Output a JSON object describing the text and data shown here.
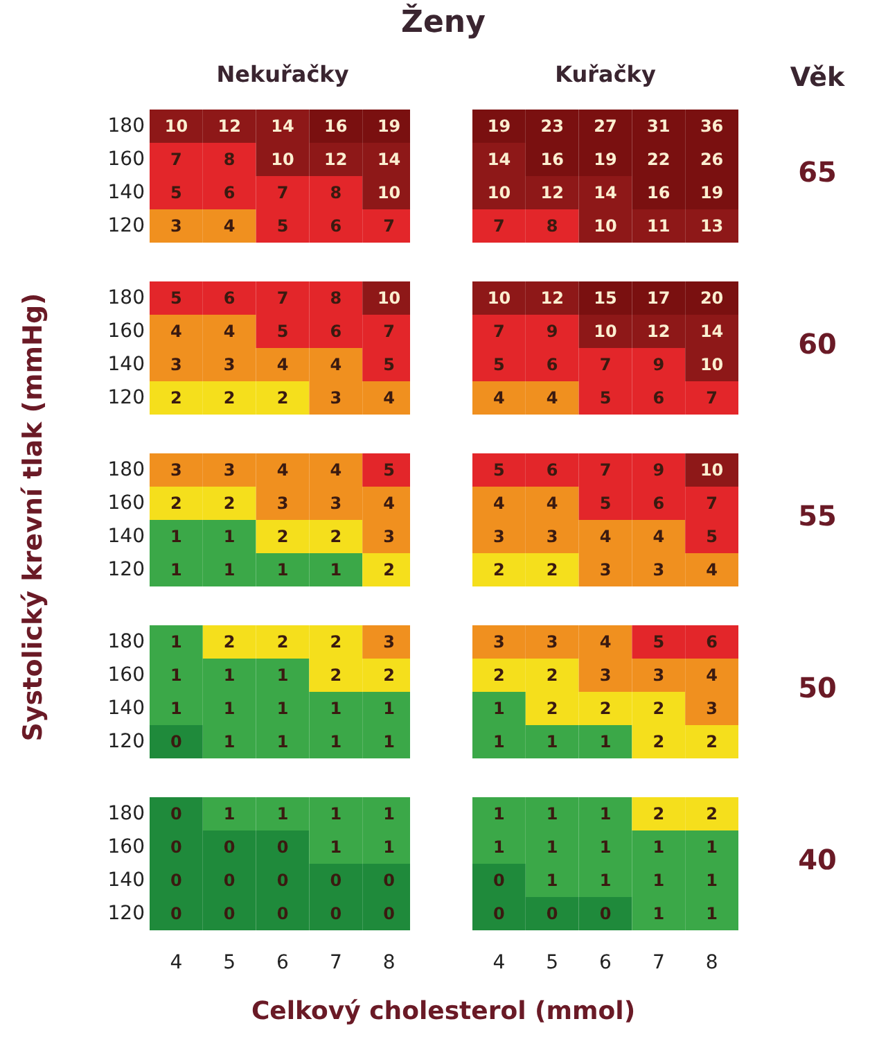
{
  "chart_data": [
    {
      "type": "heatmap",
      "data_labels": true,
      "title": "Ženy",
      "subtitle": "Nekuřačky",
      "categories": [
        "4",
        "5",
        "6",
        "7",
        "8"
      ],
      "y_categories": [
        "180",
        "160",
        "140",
        "120"
      ],
      "tick_labels": "y",
      "cells": [
        [
          10,
          12,
          14,
          16,
          19
        ],
        [
          7,
          8,
          10,
          12,
          14
        ],
        [
          5,
          6,
          7,
          8,
          10
        ],
        [
          3,
          4,
          5,
          6,
          7
        ]
      ]
    },
    {
      "type": "heatmap",
      "data_labels": true,
      "subtitle": "Kuřačky",
      "annotations": [
        "Věk"
      ],
      "y2label": "65",
      "categories": [
        "4",
        "5",
        "6",
        "7",
        "8"
      ],
      "y_categories": [
        "180",
        "160",
        "140",
        "120"
      ],
      "tick_labels": false,
      "cells": [
        [
          19,
          23,
          27,
          31,
          36
        ],
        [
          14,
          16,
          19,
          22,
          26
        ],
        [
          10,
          12,
          14,
          16,
          19
        ],
        [
          7,
          8,
          10,
          11,
          13
        ]
      ]
    },
    {
      "type": "heatmap",
      "data_labels": true,
      "categories": [
        "4",
        "5",
        "6",
        "7",
        "8"
      ],
      "y_categories": [
        "180",
        "160",
        "140",
        "120"
      ],
      "tick_labels": "y",
      "cells": [
        [
          5,
          6,
          7,
          8,
          10
        ],
        [
          4,
          4,
          5,
          6,
          7
        ],
        [
          3,
          3,
          4,
          4,
          5
        ],
        [
          2,
          2,
          2,
          3,
          4
        ]
      ]
    },
    {
      "type": "heatmap",
      "data_labels": true,
      "y2label": "60",
      "categories": [
        "4",
        "5",
        "6",
        "7",
        "8"
      ],
      "y_categories": [
        "180",
        "160",
        "140",
        "120"
      ],
      "tick_labels": false,
      "cells": [
        [
          10,
          12,
          15,
          17,
          20
        ],
        [
          7,
          9,
          10,
          12,
          14
        ],
        [
          5,
          6,
          7,
          9,
          10
        ],
        [
          4,
          4,
          5,
          6,
          7
        ]
      ]
    },
    {
      "type": "heatmap",
      "data_labels": true,
      "ylabel": "Systolický krevní tlak (mmHg)",
      "categories": [
        "4",
        "5",
        "6",
        "7",
        "8"
      ],
      "y_categories": [
        "180",
        "160",
        "140",
        "120"
      ],
      "tick_labels": "y",
      "cells": [
        [
          3,
          3,
          4,
          4,
          5
        ],
        [
          2,
          2,
          3,
          3,
          4
        ],
        [
          1,
          1,
          2,
          2,
          3
        ],
        [
          1,
          1,
          1,
          1,
          2
        ]
      ]
    },
    {
      "type": "heatmap",
      "data_labels": true,
      "y2label": "55",
      "categories": [
        "4",
        "5",
        "6",
        "7",
        "8"
      ],
      "y_categories": [
        "180",
        "160",
        "140",
        "120"
      ],
      "tick_labels": false,
      "cells": [
        [
          5,
          6,
          7,
          9,
          10
        ],
        [
          4,
          4,
          5,
          6,
          7
        ],
        [
          3,
          3,
          4,
          4,
          5
        ],
        [
          2,
          2,
          3,
          3,
          4
        ]
      ]
    },
    {
      "type": "heatmap",
      "data_labels": true,
      "categories": [
        "4",
        "5",
        "6",
        "7",
        "8"
      ],
      "y_categories": [
        "180",
        "160",
        "140",
        "120"
      ],
      "tick_labels": "y",
      "cells": [
        [
          1,
          2,
          2,
          2,
          3
        ],
        [
          1,
          1,
          1,
          2,
          2
        ],
        [
          1,
          1,
          1,
          1,
          1
        ],
        [
          0,
          1,
          1,
          1,
          1
        ]
      ]
    },
    {
      "type": "heatmap",
      "data_labels": true,
      "y2label": "50",
      "categories": [
        "4",
        "5",
        "6",
        "7",
        "8"
      ],
      "y_categories": [
        "180",
        "160",
        "140",
        "120"
      ],
      "tick_labels": false,
      "cells": [
        [
          3,
          3,
          4,
          5,
          6
        ],
        [
          2,
          2,
          3,
          3,
          4
        ],
        [
          1,
          2,
          2,
          2,
          3
        ],
        [
          1,
          1,
          1,
          2,
          2
        ]
      ]
    },
    {
      "type": "heatmap",
      "data_labels": true,
      "xlabel": "Celkový cholesterol (mmol)",
      "categories": [
        "4",
        "5",
        "6",
        "7",
        "8"
      ],
      "y_categories": [
        "180",
        "160",
        "140",
        "120"
      ],
      "cells": [
        [
          0,
          1,
          1,
          1,
          1
        ],
        [
          0,
          0,
          0,
          1,
          1
        ],
        [
          0,
          0,
          0,
          0,
          0
        ],
        [
          0,
          0,
          0,
          0,
          0
        ]
      ]
    },
    {
      "type": "heatmap",
      "data_labels": true,
      "y2label": "40",
      "categories": [
        "4",
        "5",
        "6",
        "7",
        "8"
      ],
      "y_categories": [
        "180",
        "160",
        "140",
        "120"
      ],
      "tick_labels": "x",
      "cells": [
        [
          1,
          1,
          1,
          2,
          2
        ],
        [
          1,
          1,
          1,
          1,
          1
        ],
        [
          0,
          1,
          1,
          1,
          1
        ],
        [
          0,
          0,
          0,
          1,
          1
        ]
      ]
    }
  ]
}
